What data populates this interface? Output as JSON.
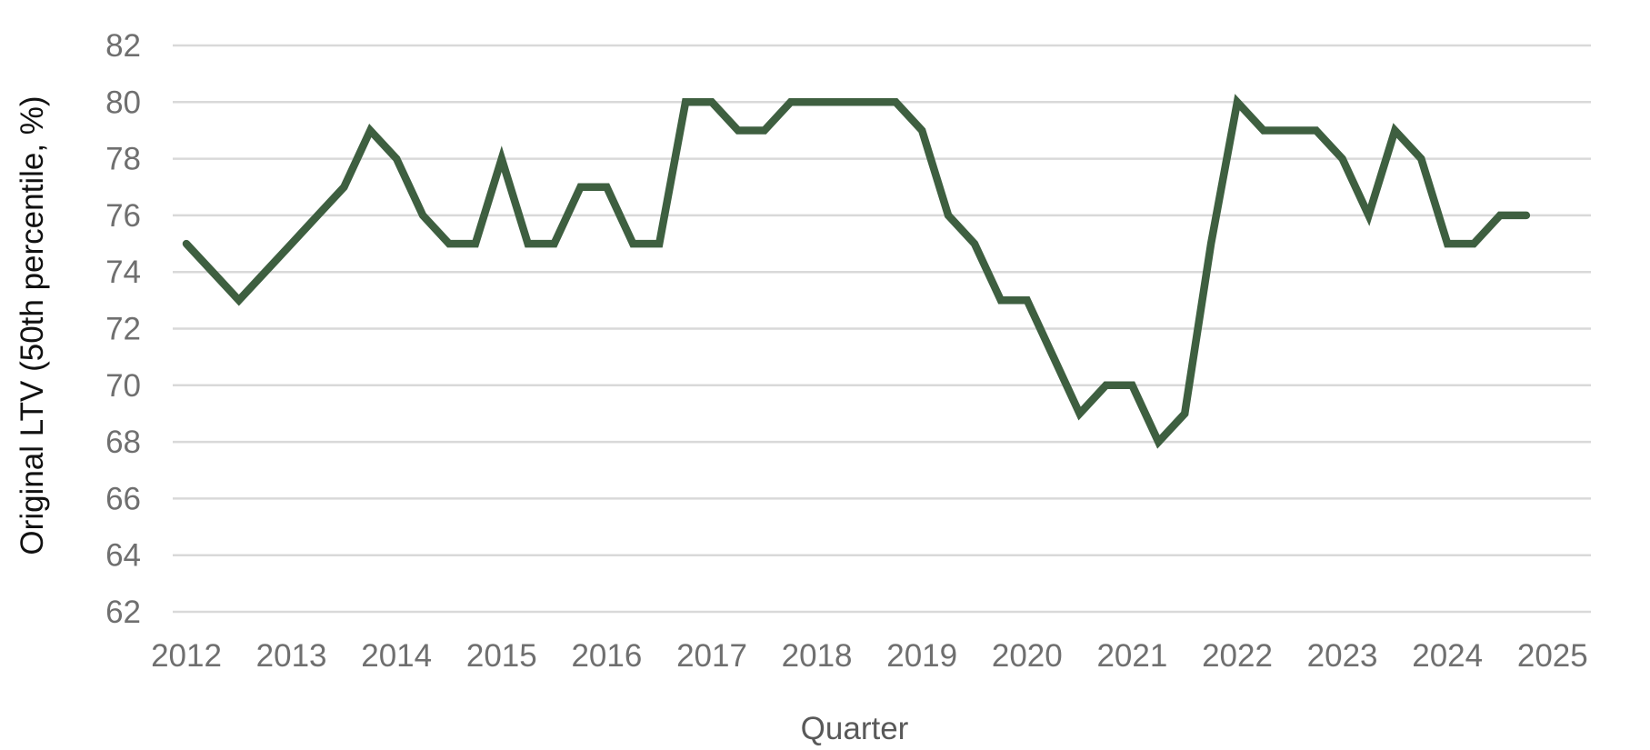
{
  "chart_data": {
    "type": "line",
    "title": "",
    "xlabel": "Quarter",
    "ylabel": "Original LTV (50th percentile, %)",
    "xlim": [
      2012,
      2025
    ],
    "ylim": [
      62,
      82
    ],
    "x_ticks": [
      "2012",
      "2013",
      "2014",
      "2015",
      "2016",
      "2017",
      "2018",
      "2019",
      "2020",
      "2021",
      "2022",
      "2023",
      "2024",
      "2025"
    ],
    "y_ticks": [
      62,
      64,
      66,
      68,
      70,
      72,
      74,
      76,
      78,
      80,
      82
    ],
    "grid": true,
    "legend": "none",
    "colors": {
      "line": "#3e5f40",
      "grid": "#d9d9d9",
      "tick_text": "#6f6f6f"
    },
    "series": [
      {
        "x": [
          "2012 Q1",
          "2012 Q2",
          "2012 Q3",
          "2012 Q4",
          "2013 Q1",
          "2013 Q2",
          "2013 Q3",
          "2013 Q4",
          "2014 Q1",
          "2014 Q2",
          "2014 Q3",
          "2014 Q4",
          "2015 Q1",
          "2015 Q2",
          "2015 Q3",
          "2015 Q4",
          "2016 Q1",
          "2016 Q2",
          "2016 Q3",
          "2016 Q4",
          "2017 Q1",
          "2017 Q2",
          "2017 Q3",
          "2017 Q4",
          "2018 Q1",
          "2018 Q2",
          "2018 Q3",
          "2018 Q4",
          "2019 Q1",
          "2019 Q2",
          "2019 Q3",
          "2019 Q4",
          "2020 Q1",
          "2020 Q2",
          "2020 Q3",
          "2020 Q4",
          "2021 Q1",
          "2021 Q2",
          "2021 Q3",
          "2021 Q4",
          "2022 Q1",
          "2022 Q2",
          "2022 Q3",
          "2022 Q4",
          "2023 Q1",
          "2023 Q2",
          "2023 Q3",
          "2023 Q4",
          "2024 Q1",
          "2024 Q2",
          "2024 Q3",
          "2024 Q4"
        ],
        "values": [
          75,
          74,
          73,
          74,
          75,
          76,
          77,
          79,
          78,
          76,
          75,
          75,
          78,
          75,
          75,
          77,
          77,
          75,
          75,
          80,
          80,
          79,
          79,
          80,
          80,
          80,
          80,
          80,
          79,
          76,
          75,
          73,
          73,
          71,
          69,
          70,
          70,
          68,
          69,
          75,
          80,
          79,
          79,
          79,
          78,
          76,
          79,
          78,
          75,
          75,
          76,
          76
        ]
      }
    ]
  }
}
